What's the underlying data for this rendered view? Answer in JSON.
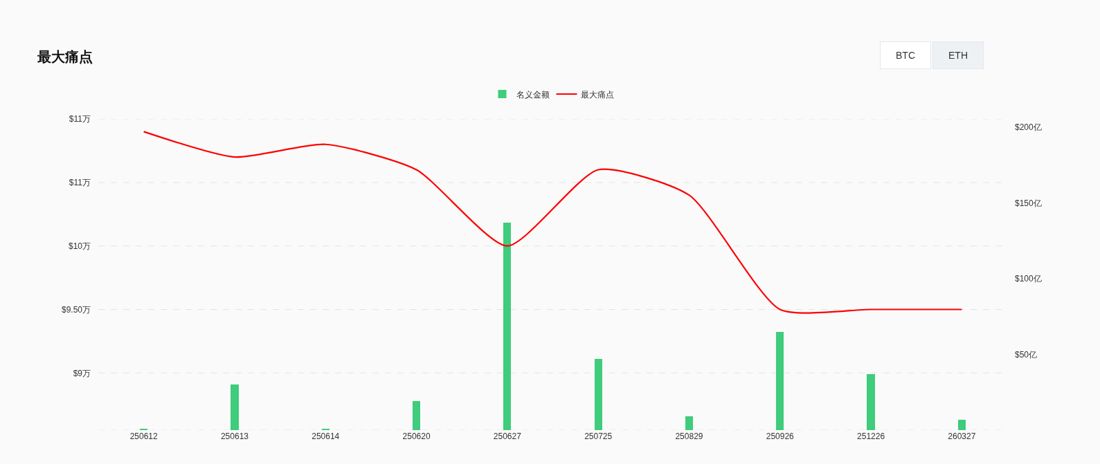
{
  "chart_data": {
    "type": "bar",
    "title": "最大痛点",
    "annotations": [
      "BTC",
      "ETH"
    ],
    "categories": [
      "250612",
      "250613",
      "250614",
      "250620",
      "250627",
      "250725",
      "250829",
      "250926",
      "251226",
      "260327"
    ],
    "series": [
      {
        "name": "名义金额",
        "axis": "y2",
        "color": "#3fcc7c",
        "values": [
          1,
          30,
          0.5,
          19,
          137,
          47,
          9,
          65,
          37,
          7
        ]
      },
      {
        "name": "最大痛点",
        "type": "line",
        "color": "#ff0000",
        "values": [
          10.9,
          10.7,
          10.8,
          10.6,
          10,
          10.6,
          10.4,
          9.5,
          9.5,
          9.5
        ]
      }
    ],
    "ylim": [
      8.55,
      11
    ],
    "yticks": [
      {
        "value": 8.55,
        "label": null
      },
      {
        "value": 9,
        "label": "$9万"
      },
      {
        "value": 9.5,
        "label": "$9.50万"
      },
      {
        "value": 10,
        "label": "$10万"
      },
      {
        "value": 10.5,
        "label": "$11万"
      },
      {
        "value": 11,
        "label": "$11万"
      }
    ],
    "y2lim": [
      0,
      205.4
    ],
    "y2ticks": [
      {
        "value": 50,
        "label": "$50亿"
      },
      {
        "value": 100,
        "label": "$100亿"
      },
      {
        "value": 150,
        "label": "$150亿"
      },
      {
        "value": 200,
        "label": "$200亿"
      }
    ],
    "grid": "y",
    "legend": "top"
  }
}
